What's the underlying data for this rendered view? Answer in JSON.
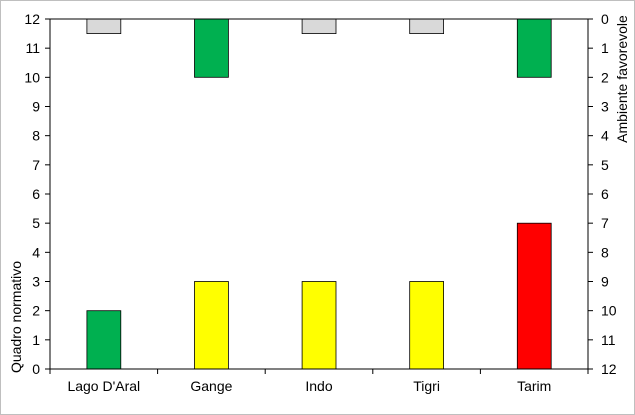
{
  "chart_data": {
    "type": "bar",
    "categories": [
      "Lago D'Aral",
      "Gange",
      "Indo",
      "Tigri",
      "Tarim"
    ],
    "series": [
      {
        "name": "Quadro normativo",
        "axis": "left",
        "values": [
          2,
          3,
          3,
          3,
          5
        ],
        "colors": [
          "#00b050",
          "#ffff00",
          "#ffff00",
          "#ffff00",
          "#ff0000"
        ]
      },
      {
        "name": "Ambiente favorevole",
        "axis": "right",
        "values": [
          0.5,
          2,
          0.5,
          0.5,
          2
        ],
        "colors": [
          "#d9d9d9",
          "#00b050",
          "#d9d9d9",
          "#d9d9d9",
          "#00b050"
        ]
      }
    ],
    "ylabel_left": "Quadro normativo",
    "ylabel_right": "Ambiente favorevole",
    "ylim_left": [
      0,
      12
    ],
    "ylim_right": [
      0,
      12
    ],
    "right_axis_inverted": true,
    "yticks": [
      0,
      1,
      2,
      3,
      4,
      5,
      6,
      7,
      8,
      9,
      10,
      11,
      12
    ],
    "grid": false,
    "legend": "none"
  }
}
